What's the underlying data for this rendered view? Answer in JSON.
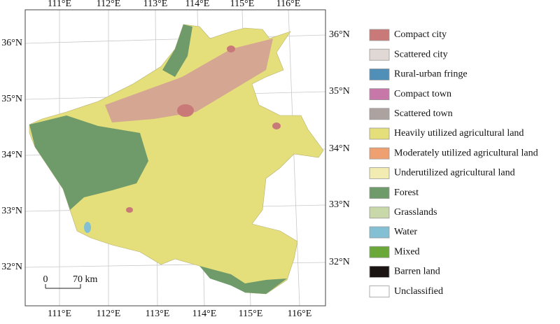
{
  "map": {
    "lon_labels": [
      "111°E",
      "112°E",
      "113°E",
      "114°E",
      "115°E",
      "116°E"
    ],
    "lat_labels": [
      "36°N",
      "35°N",
      "34°N",
      "33°N",
      "32°N"
    ],
    "scale_bar": {
      "start": "0",
      "end": "70 km"
    },
    "legend": [
      {
        "name": "Compact city",
        "color": "#c97a78"
      },
      {
        "name": "Scattered city",
        "color": "#e0d8d4"
      },
      {
        "name": "Rural-urban fringe",
        "color": "#4f8fb8"
      },
      {
        "name": "Compact town",
        "color": "#c878a8"
      },
      {
        "name": "Scattered town",
        "color": "#aca3a1"
      },
      {
        "name": "Heavily utilized agricultural land",
        "color": "#e4df7a"
      },
      {
        "name": "Moderately utilized agricultural land",
        "color": "#eea070"
      },
      {
        "name": "Underutilized agricultural land",
        "color": "#f2ecb2"
      },
      {
        "name": "Forest",
        "color": "#6f9a6a"
      },
      {
        "name": "Grasslands",
        "color": "#c8d8a8"
      },
      {
        "name": "Water",
        "color": "#84c0d4"
      },
      {
        "name": "Mixed",
        "color": "#6aa83a"
      },
      {
        "name": "Barren land",
        "color": "#1a1412"
      },
      {
        "name": "Unclassified",
        "color": "#ffffff"
      }
    ]
  }
}
